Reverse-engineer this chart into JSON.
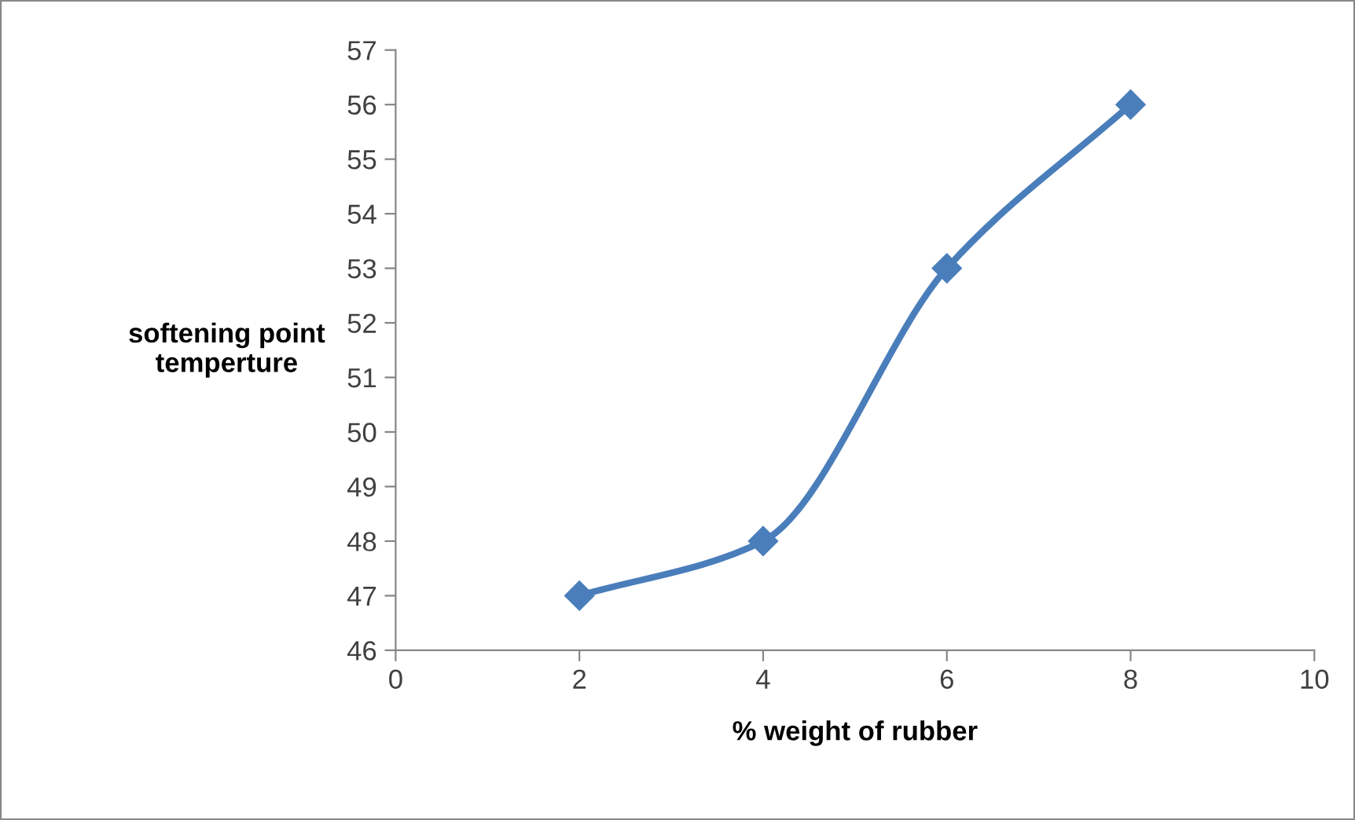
{
  "chart_data": {
    "type": "line",
    "xlabel": "% weight of rubber",
    "ylabel": "softening point\ntemperture",
    "x": [
      2,
      4,
      6,
      8
    ],
    "series": [
      {
        "color": "#4a7ebb",
        "values": [
          47,
          48,
          53,
          56
        ]
      }
    ],
    "xlim": [
      0,
      10
    ],
    "xticks": [
      0,
      2,
      4,
      6,
      8,
      10
    ],
    "ylim": [
      46,
      57
    ],
    "yticks": [
      46,
      47,
      48,
      49,
      50,
      51,
      52,
      53,
      54,
      55,
      56,
      57
    ],
    "marker": "diamond",
    "line_style": "solid",
    "grid": false,
    "legend": false
  }
}
